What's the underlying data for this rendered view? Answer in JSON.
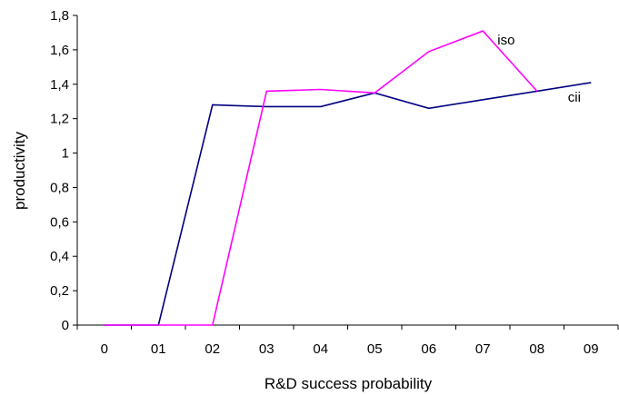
{
  "chart_data": {
    "type": "line",
    "title": "",
    "xlabel": "R&D success probability",
    "ylabel": "productivity",
    "categories": [
      "0",
      "01",
      "02",
      "03",
      "04",
      "05",
      "06",
      "07",
      "08",
      "09"
    ],
    "ylim": [
      0,
      1.8
    ],
    "yticks": [
      0,
      0.2,
      0.4,
      0.6,
      0.8,
      1,
      1.2,
      1.4,
      1.6,
      1.8
    ],
    "ytick_labels": [
      "0",
      "0,2",
      "0,4",
      "0,6",
      "0,8",
      "1",
      "1,2",
      "1,4",
      "1,6",
      "1,8"
    ],
    "grid": false,
    "legend": "none",
    "series": [
      {
        "name": "cii",
        "color": "#000080",
        "values": [
          0,
          0,
          1.28,
          1.27,
          1.27,
          1.35,
          1.26,
          1.31,
          1.36,
          1.41
        ]
      },
      {
        "name": "iso",
        "color": "#ff00ff",
        "values": [
          0,
          0,
          0,
          1.36,
          1.37,
          1.35,
          1.59,
          1.71,
          1.36,
          null
        ]
      }
    ]
  }
}
